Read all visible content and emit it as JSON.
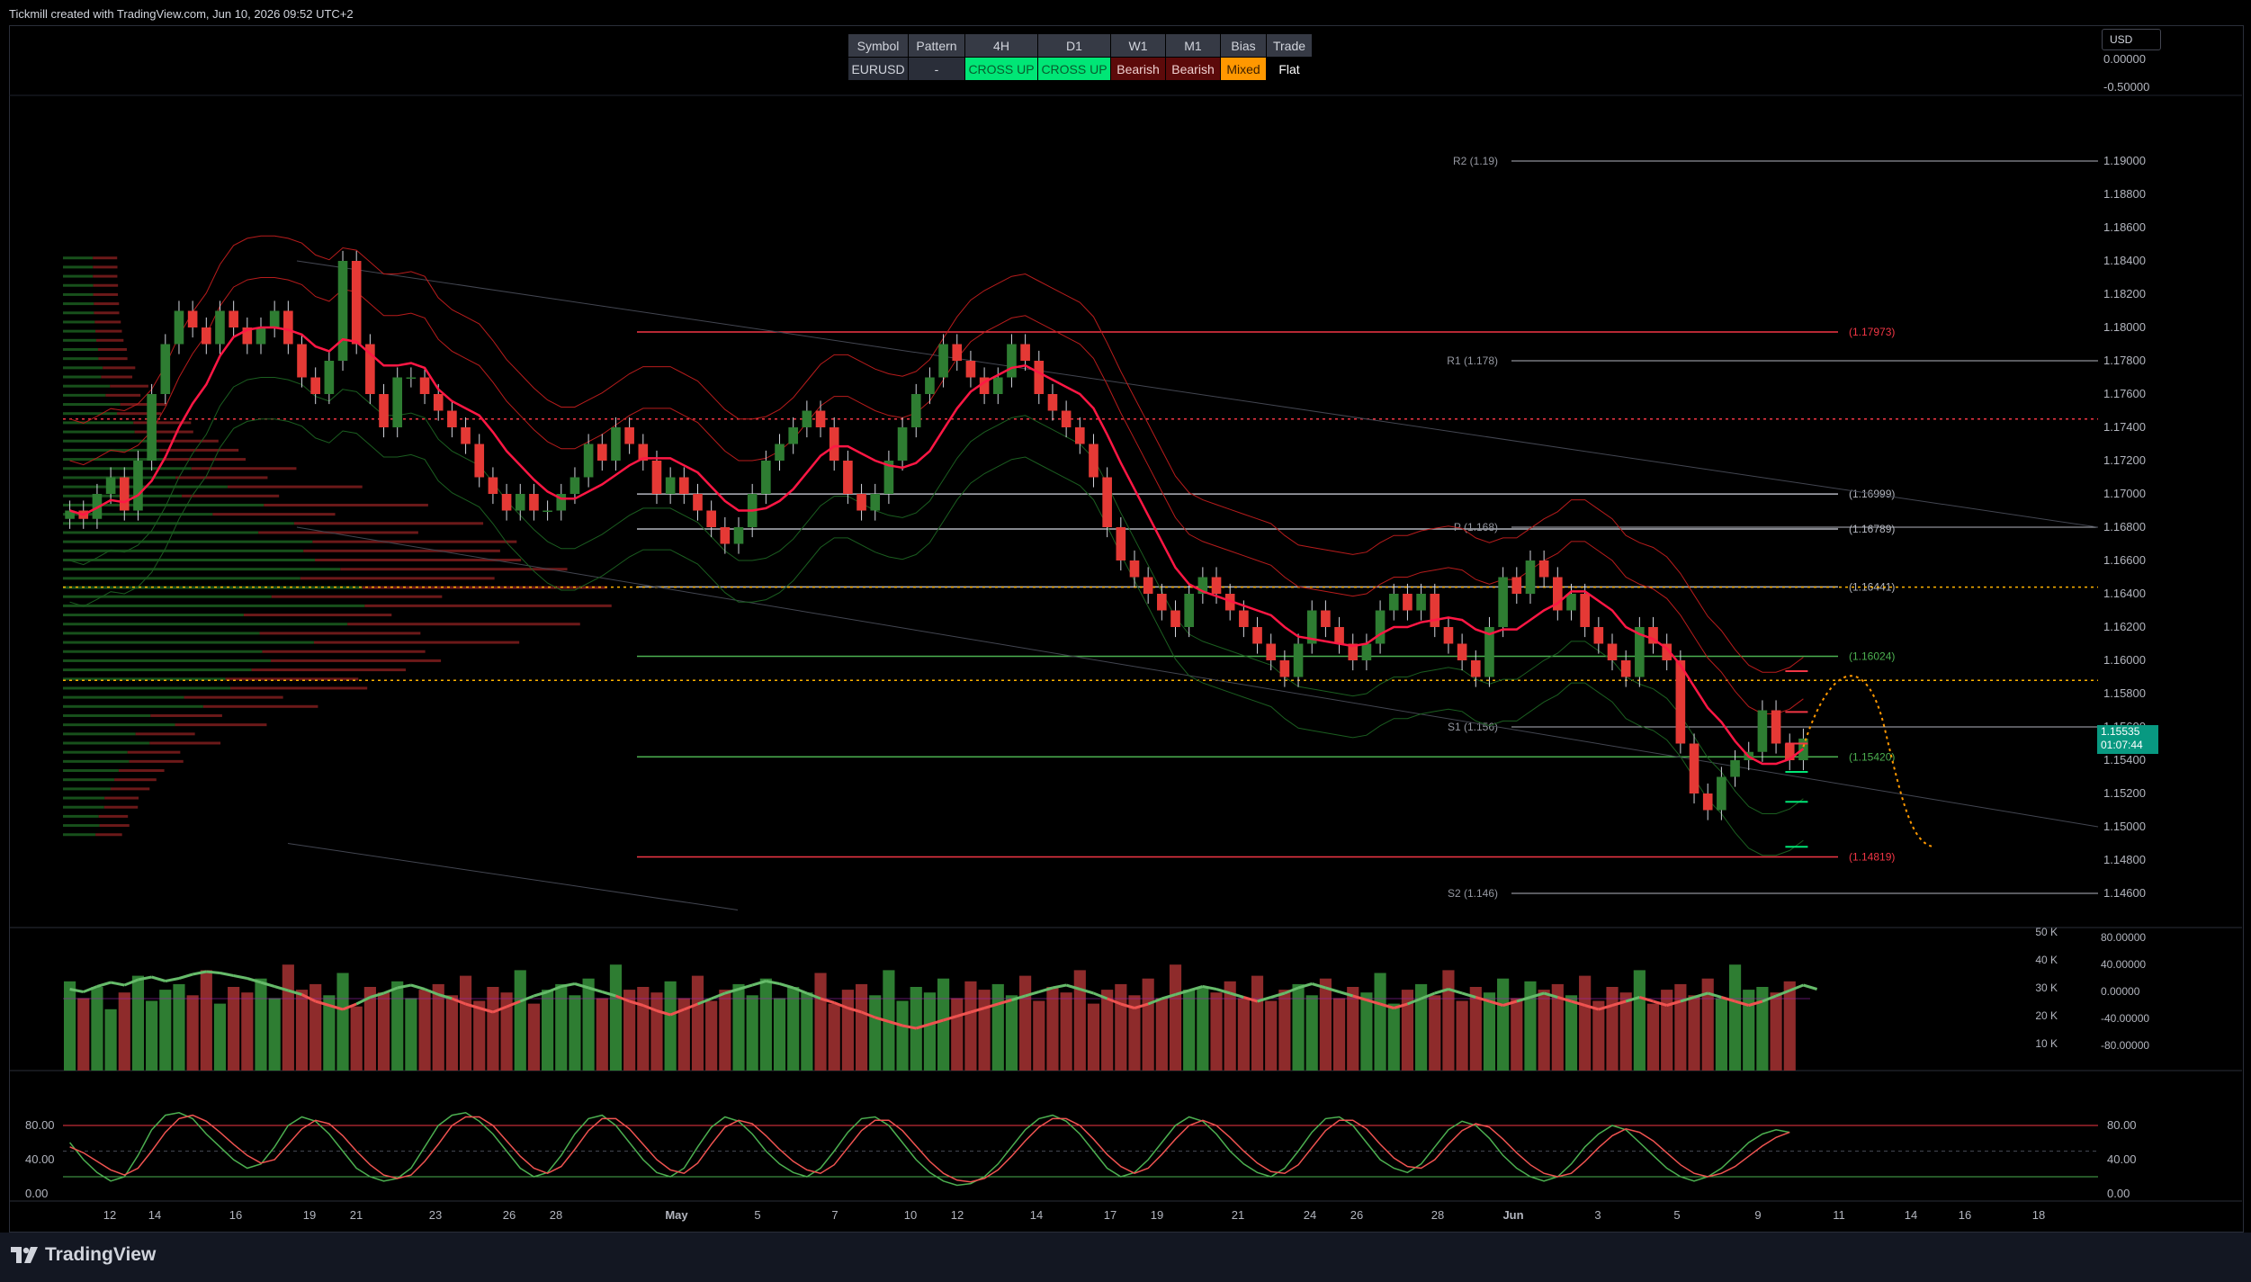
{
  "header": {
    "text": "Tickmill created with TradingView.com, Jun 10, 2026 09:52 UTC+2"
  },
  "footer": {
    "brand": "TradingView"
  },
  "toolbar": {
    "currency": "USD"
  },
  "signal_table": {
    "headers": [
      "Symbol",
      "Pattern",
      "4H",
      "D1",
      "W1",
      "M1",
      "Bias",
      "Trade"
    ],
    "values": [
      "EURUSD",
      "-",
      "CROSS UP",
      "CROSS UP",
      "Bearish",
      "Bearish",
      "Mixed",
      "Flat"
    ]
  },
  "price_tag": {
    "price": "1.15535",
    "countdown": "01:07:44"
  },
  "colors": {
    "bull": "#26a69a",
    "bear": "#ef5350",
    "candle_up": "#2e7d32",
    "candle_down": "#e53935",
    "orange": "#ff9800"
  },
  "chart_data": [
    {
      "type": "candlestick",
      "symbol": "EURUSD",
      "timeframe": "4H",
      "ylim": [
        1.144,
        1.194
      ],
      "yticks": [
        "1.19000",
        "1.18800",
        "1.18600",
        "1.18400",
        "1.18200",
        "1.18000",
        "1.17800",
        "1.17600",
        "1.17400",
        "1.17200",
        "1.17000",
        "1.16800",
        "1.16600",
        "1.16400",
        "1.16200",
        "1.16000",
        "1.15800",
        "1.15600",
        "1.15400",
        "1.15200",
        "1.15000",
        "1.14800",
        "1.14600"
      ],
      "right_scale_top": [
        "0.00000",
        "-0.50000"
      ],
      "xticks": [
        "12",
        "14",
        "16",
        "19",
        "21",
        "23",
        "26",
        "28",
        "May",
        "5",
        "7",
        "10",
        "12",
        "14",
        "17",
        "19",
        "21",
        "24",
        "26",
        "28",
        "Jun",
        "3",
        "5",
        "9",
        "11",
        "14",
        "16",
        "18"
      ],
      "levels": [
        {
          "label": "R2 (1.19)",
          "value": 1.19
        },
        {
          "label": "R1 (1.178)",
          "value": 1.178
        },
        {
          "label": "P (1.168)",
          "value": 1.168
        },
        {
          "label": "S1 (1.156)",
          "value": 1.156
        },
        {
          "label": "S2 (1.146)",
          "value": 1.146
        }
      ],
      "zones": [
        {
          "label": "(1.17973)",
          "value": 1.17973,
          "color": "#f23645"
        },
        {
          "label": "(1.16999)",
          "value": 1.16999,
          "color": "#b2b5be"
        },
        {
          "label": "(1.16789)",
          "value": 1.16789,
          "color": "#b2b5be"
        },
        {
          "label": "(1.16441)",
          "value": 1.16441,
          "color": "#b2b5be"
        },
        {
          "label": "(1.16024)",
          "value": 1.16024,
          "color": "#4caf50"
        },
        {
          "label": "(1.15420)",
          "value": 1.1542,
          "color": "#4caf50"
        },
        {
          "label": "(1.14819)",
          "value": 1.14819,
          "color": "#f23645"
        }
      ],
      "dotted_levels": [
        {
          "value": 1.1745,
          "color": "#f23645"
        },
        {
          "value": 1.1644,
          "color": "#ffb300"
        },
        {
          "value": 1.1588,
          "color": "#ffb300"
        }
      ],
      "closes": [
        1.169,
        1.1685,
        1.17,
        1.171,
        1.169,
        1.172,
        1.176,
        1.179,
        1.181,
        1.18,
        1.179,
        1.181,
        1.18,
        1.179,
        1.18,
        1.181,
        1.179,
        1.177,
        1.176,
        1.178,
        1.184,
        1.179,
        1.176,
        1.174,
        1.177,
        1.177,
        1.176,
        1.175,
        1.174,
        1.173,
        1.171,
        1.17,
        1.169,
        1.17,
        1.169,
        1.169,
        1.17,
        1.171,
        1.173,
        1.172,
        1.174,
        1.173,
        1.172,
        1.17,
        1.171,
        1.17,
        1.169,
        1.168,
        1.167,
        1.168,
        1.17,
        1.172,
        1.173,
        1.174,
        1.175,
        1.174,
        1.172,
        1.17,
        1.169,
        1.17,
        1.172,
        1.174,
        1.176,
        1.177,
        1.179,
        1.178,
        1.177,
        1.176,
        1.177,
        1.179,
        1.178,
        1.176,
        1.175,
        1.174,
        1.173,
        1.171,
        1.168,
        1.166,
        1.165,
        1.164,
        1.163,
        1.162,
        1.164,
        1.165,
        1.164,
        1.163,
        1.162,
        1.161,
        1.16,
        1.159,
        1.161,
        1.163,
        1.162,
        1.161,
        1.16,
        1.161,
        1.163,
        1.164,
        1.163,
        1.164,
        1.162,
        1.161,
        1.16,
        1.159,
        1.162,
        1.165,
        1.164,
        1.166,
        1.165,
        1.163,
        1.164,
        1.162,
        1.161,
        1.16,
        1.159,
        1.162,
        1.161,
        1.16,
        1.155,
        1.152,
        1.151,
        1.153,
        1.154,
        1.1545,
        1.157,
        1.155,
        1.154,
        1.1553
      ]
    },
    {
      "type": "bar",
      "name": "volume",
      "yticks": [
        "50 K",
        "40 K",
        "30 K",
        "20 K",
        "10 K"
      ],
      "right_ticks": [
        "80.00000",
        "40.00000",
        "0.00000",
        "-40.00000",
        "-80.00000"
      ],
      "ylim": [
        0,
        50000
      ],
      "values": [
        32000,
        26000,
        30000,
        22000,
        28000,
        34000,
        25000,
        29000,
        31000,
        27000,
        36000,
        24000,
        30000,
        28000,
        33000,
        26000,
        38000,
        29000,
        31000,
        27000,
        35000,
        23000,
        30000,
        28000,
        32000,
        26000,
        29000,
        31000,
        27000,
        34000,
        25000,
        30000,
        28000,
        36000,
        24000,
        29000,
        31000,
        27000,
        33000,
        26000,
        38000,
        29000,
        30000,
        28000,
        32000,
        26000,
        34000,
        25000,
        29000,
        31000,
        27000,
        33000,
        26000,
        30000,
        28000,
        35000,
        24000,
        29000,
        31000,
        27000,
        36000,
        25000,
        30000,
        28000,
        33000,
        26000,
        32000,
        29000,
        31000,
        27000,
        34000,
        25000,
        30000,
        28000,
        36000,
        24000,
        29000,
        31000,
        27000,
        33000,
        26000,
        38000,
        29000,
        30000,
        28000,
        32000,
        26000,
        34000,
        25000,
        29000,
        31000,
        27000,
        33000,
        26000,
        30000,
        28000,
        35000,
        24000,
        29000,
        31000,
        27000,
        36000,
        25000,
        30000,
        28000,
        33000,
        26000,
        32000,
        29000,
        31000,
        27000,
        34000,
        25000,
        30000,
        28000,
        36000,
        24000,
        29000,
        31000,
        27000,
        33000,
        26000,
        38000,
        29000,
        30000,
        28000,
        32000
      ],
      "oscillator": [
        0.7,
        0.5,
        0.9,
        1.2,
        1.0,
        1.4,
        1.6,
        1.3,
        1.5,
        1.8,
        2.0,
        1.9,
        1.7,
        1.5,
        1.2,
        0.9,
        0.6,
        0.3,
        -0.2,
        -0.5,
        -0.8,
        -0.4,
        0.1,
        0.4,
        0.8,
        1.0,
        0.7,
        0.3,
        0.0,
        -0.4,
        -0.7,
        -1.0,
        -0.6,
        -0.2,
        0.2,
        0.5,
        0.9,
        1.1,
        0.8,
        0.5,
        0.2,
        -0.2,
        -0.5,
        -0.9,
        -1.2,
        -0.8,
        -0.4,
        0.0,
        0.4,
        0.7,
        1.0,
        1.3,
        1.1,
        0.8,
        0.4,
        0.0,
        -0.3,
        -0.7,
        -1.0,
        -1.4,
        -1.7,
        -2.0,
        -2.2,
        -1.9,
        -1.6,
        -1.3,
        -1.0,
        -0.7,
        -0.4,
        -0.1,
        0.2,
        0.5,
        0.8,
        1.0,
        0.7,
        0.4,
        0.0,
        -0.4,
        -0.7,
        -0.4,
        0.0,
        0.3,
        0.6,
        0.9,
        0.7,
        0.4,
        0.1,
        -0.2,
        0.1,
        0.4,
        0.8,
        1.1,
        0.8,
        0.5,
        0.2,
        -0.1,
        -0.4,
        -0.7,
        -0.4,
        0.0,
        0.4,
        0.7,
        0.4,
        0.1,
        -0.2,
        -0.5,
        -0.2,
        0.1,
        0.4,
        0.1,
        -0.2,
        -0.5,
        -0.8,
        -0.5,
        -0.2,
        0.1,
        -0.2,
        -0.5,
        -0.2,
        0.1,
        0.4,
        0.1,
        -0.2,
        -0.5,
        -0.2,
        0.2,
        0.6,
        1.0,
        0.7
      ]
    },
    {
      "type": "line",
      "name": "stochastic",
      "yticks": [
        "80.00",
        "40.00",
        "0.00"
      ],
      "ylim": [
        0,
        100
      ],
      "k": [
        60,
        40,
        25,
        15,
        20,
        45,
        75,
        92,
        95,
        88,
        70,
        55,
        40,
        30,
        35,
        55,
        80,
        90,
        85,
        70,
        50,
        30,
        20,
        15,
        18,
        30,
        55,
        80,
        92,
        95,
        85,
        70,
        50,
        30,
        20,
        25,
        45,
        70,
        88,
        92,
        80,
        60,
        40,
        25,
        20,
        30,
        55,
        78,
        90,
        85,
        70,
        50,
        35,
        25,
        20,
        30,
        50,
        72,
        88,
        90,
        80,
        60,
        40,
        25,
        15,
        10,
        12,
        20,
        35,
        55,
        75,
        88,
        92,
        85,
        70,
        50,
        30,
        20,
        25,
        40,
        60,
        80,
        90,
        85,
        70,
        50,
        35,
        25,
        20,
        30,
        50,
        72,
        88,
        90,
        80,
        60,
        40,
        30,
        25,
        35,
        55,
        75,
        85,
        80,
        65,
        45,
        30,
        20,
        15,
        20,
        35,
        55,
        70,
        80,
        75,
        60,
        45,
        30,
        20,
        15,
        20,
        30,
        45,
        60,
        70,
        75,
        72
      ],
      "d": [
        55,
        48,
        38,
        28,
        22,
        30,
        50,
        72,
        88,
        92,
        85,
        72,
        58,
        45,
        36,
        40,
        58,
        76,
        86,
        82,
        68,
        50,
        34,
        22,
        18,
        22,
        38,
        58,
        80,
        90,
        90,
        80,
        62,
        44,
        30,
        24,
        32,
        52,
        74,
        88,
        88,
        76,
        58,
        40,
        28,
        24,
        36,
        58,
        78,
        86,
        82,
        68,
        52,
        38,
        28,
        24,
        34,
        54,
        74,
        86,
        86,
        74,
        56,
        38,
        24,
        16,
        14,
        18,
        28,
        44,
        62,
        78,
        88,
        88,
        80,
        64,
        46,
        32,
        24,
        30,
        46,
        64,
        80,
        86,
        80,
        66,
        50,
        36,
        26,
        24,
        34,
        54,
        74,
        86,
        86,
        76,
        58,
        42,
        32,
        30,
        40,
        58,
        74,
        82,
        78,
        64,
        48,
        34,
        24,
        20,
        24,
        38,
        54,
        68,
        76,
        72,
        62,
        48,
        34,
        24,
        20,
        24,
        32,
        44,
        56,
        66,
        72
      ]
    }
  ]
}
